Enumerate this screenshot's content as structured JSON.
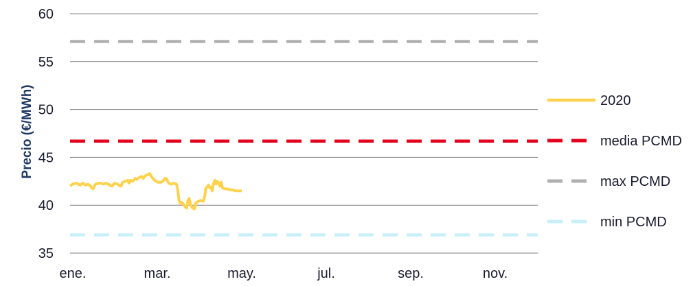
{
  "chart_data": {
    "type": "line",
    "ylabel": "Precio (€/MWh)",
    "xlabel": "",
    "ylim": [
      35,
      60
    ],
    "yticks": [
      "35",
      "40",
      "45",
      "50",
      "55",
      "60"
    ],
    "x_ticks": [
      "ene.",
      "mar.",
      "may.",
      "jul.",
      "sep.",
      "nov."
    ],
    "x_domain_days": [
      1,
      366
    ],
    "grid": "horizontal",
    "legend_position": "right",
    "series": [
      {
        "name": "2020",
        "color": "#ffd24d",
        "style": "solid",
        "points": [
          [
            1,
            42.0
          ],
          [
            3,
            42.2
          ],
          [
            6,
            42.3
          ],
          [
            9,
            42.1
          ],
          [
            11,
            42.3
          ],
          [
            13,
            42.1
          ],
          [
            15,
            42.2
          ],
          [
            17,
            42.0
          ],
          [
            18,
            41.8
          ],
          [
            19,
            41.7
          ],
          [
            20,
            42.0
          ],
          [
            21,
            42.2
          ],
          [
            23,
            42.3
          ],
          [
            25,
            42.3
          ],
          [
            27,
            42.2
          ],
          [
            29,
            42.3
          ],
          [
            31,
            42.2
          ],
          [
            33,
            42.0
          ],
          [
            34,
            42.0
          ],
          [
            35,
            42.2
          ],
          [
            36,
            42.3
          ],
          [
            38,
            42.2
          ],
          [
            40,
            42.0
          ],
          [
            41,
            42.0
          ],
          [
            42,
            42.4
          ],
          [
            44,
            42.5
          ],
          [
            46,
            42.6
          ],
          [
            47,
            42.3
          ],
          [
            48,
            42.6
          ],
          [
            50,
            42.5
          ],
          [
            52,
            42.8
          ],
          [
            53,
            42.7
          ],
          [
            55,
            42.9
          ],
          [
            57,
            43.0
          ],
          [
            58,
            42.8
          ],
          [
            60,
            43.1
          ],
          [
            62,
            43.2
          ],
          [
            63,
            43.3
          ],
          [
            65,
            42.9
          ],
          [
            67,
            42.6
          ],
          [
            68,
            42.5
          ],
          [
            70,
            42.4
          ],
          [
            72,
            42.4
          ],
          [
            74,
            42.6
          ],
          [
            75,
            42.8
          ],
          [
            76,
            42.8
          ],
          [
            78,
            42.3
          ],
          [
            80,
            42.2
          ],
          [
            82,
            42.3
          ],
          [
            84,
            42.2
          ],
          [
            85,
            41.7
          ],
          [
            86,
            40.5
          ],
          [
            87,
            40.2
          ],
          [
            88,
            40.3
          ],
          [
            89,
            40.2
          ],
          [
            90,
            40.0
          ],
          [
            91,
            39.8
          ],
          [
            92,
            39.7
          ],
          [
            93,
            40.5
          ],
          [
            94,
            40.7
          ],
          [
            95,
            40.1
          ],
          [
            96,
            39.8
          ],
          [
            97,
            39.7
          ],
          [
            98,
            39.6
          ],
          [
            99,
            40.2
          ],
          [
            100,
            40.3
          ],
          [
            101,
            40.4
          ],
          [
            103,
            40.5
          ],
          [
            105,
            40.4
          ],
          [
            106,
            40.9
          ],
          [
            107,
            41.8
          ],
          [
            108,
            41.9
          ],
          [
            109,
            42.1
          ],
          [
            110,
            41.8
          ],
          [
            111,
            41.9
          ],
          [
            112,
            41.5
          ],
          [
            113,
            42.3
          ],
          [
            114,
            42.6
          ],
          [
            115,
            42.2
          ],
          [
            116,
            42.5
          ],
          [
            117,
            42.3
          ],
          [
            118,
            42.0
          ],
          [
            119,
            42.4
          ],
          [
            120,
            41.8
          ],
          [
            122,
            41.7
          ],
          [
            124,
            41.7
          ],
          [
            126,
            41.6
          ],
          [
            128,
            41.6
          ],
          [
            130,
            41.5
          ],
          [
            132,
            41.5
          ],
          [
            135,
            41.5
          ]
        ]
      },
      {
        "name": "media PCMD",
        "color": "#e3001b",
        "style": "dashed",
        "points": [
          [
            1,
            46.7
          ],
          [
            366,
            46.7
          ]
        ]
      },
      {
        "name": "max PCMD",
        "color": "#b0b0b0",
        "style": "dashed",
        "points": [
          [
            1,
            57.1
          ],
          [
            366,
            57.1
          ]
        ]
      },
      {
        "name": "min PCMD",
        "color": "#c9f0fa",
        "style": "dashed",
        "points": [
          [
            1,
            36.9
          ],
          [
            366,
            36.9
          ]
        ]
      }
    ]
  }
}
